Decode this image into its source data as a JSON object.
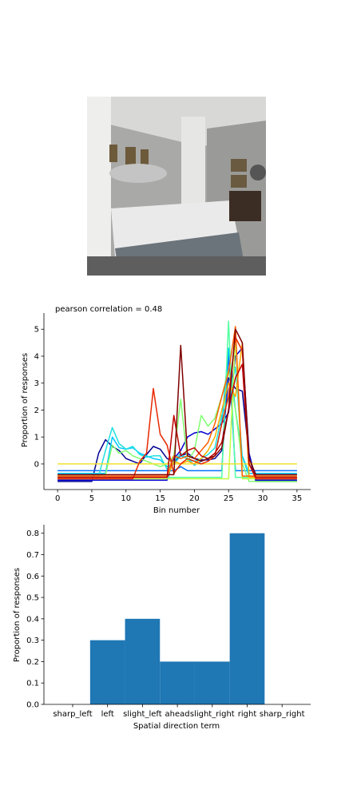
{
  "photo": {
    "description": "bedroom-photo"
  },
  "chart_data": [
    {
      "type": "line",
      "title": "pearson correlation = 0.48",
      "xlabel": "Bin number",
      "ylabel": "Proportion of responses",
      "xlim": [
        -2,
        37
      ],
      "ylim": [
        -0.95,
        5.6
      ],
      "xticks": [
        0,
        5,
        10,
        15,
        20,
        25,
        30,
        35
      ],
      "yticks": [
        0,
        1,
        2,
        3,
        4,
        5
      ],
      "x": [
        0,
        1,
        2,
        3,
        4,
        5,
        6,
        7,
        8,
        9,
        10,
        11,
        12,
        13,
        14,
        15,
        16,
        17,
        18,
        19,
        20,
        21,
        22,
        23,
        24,
        25,
        26,
        27,
        28,
        29,
        30,
        31,
        32,
        33,
        34,
        35
      ],
      "series": [
        {
          "color": "#00008f",
          "values": [
            -0.65,
            -0.65,
            -0.65,
            -0.65,
            -0.65,
            -0.65,
            0.4,
            0.9,
            0.65,
            0.5,
            0.2,
            0.1,
            0.0,
            0.35,
            0.65,
            0.55,
            0.2,
            0.1,
            0.3,
            0.4,
            0.2,
            0.15,
            0.15,
            0.2,
            0.5,
            3.2,
            2.8,
            2.7,
            0.3,
            -0.65,
            -0.65,
            -0.65,
            -0.65,
            -0.65,
            -0.65,
            -0.65
          ]
        },
        {
          "color": "#0000d0",
          "values": [
            -0.6,
            -0.6,
            -0.6,
            -0.6,
            -0.6,
            -0.6,
            -0.6,
            -0.6,
            -0.6,
            -0.6,
            -0.6,
            -0.6,
            -0.6,
            -0.6,
            -0.6,
            -0.6,
            -0.6,
            0.2,
            0.5,
            1.0,
            1.15,
            1.2,
            1.1,
            1.3,
            1.5,
            1.9,
            4.0,
            4.3,
            0.4,
            -0.6,
            -0.6,
            -0.6,
            -0.6,
            -0.6,
            -0.6,
            -0.6
          ]
        },
        {
          "color": "#0070ff",
          "values": [
            -0.25,
            -0.25,
            -0.25,
            -0.25,
            -0.25,
            -0.25,
            -0.25,
            -0.25,
            -0.25,
            -0.25,
            -0.25,
            -0.25,
            -0.25,
            -0.25,
            -0.25,
            -0.25,
            -0.25,
            -0.25,
            -0.1,
            -0.25,
            -0.25,
            -0.25,
            -0.25,
            -0.25,
            -0.25,
            4.1,
            -0.25,
            -0.25,
            -0.25,
            -0.25,
            -0.25,
            -0.25,
            -0.25,
            -0.25,
            -0.25,
            -0.25
          ]
        },
        {
          "color": "#00c8ff",
          "values": [
            -0.35,
            -0.35,
            -0.35,
            -0.35,
            -0.35,
            -0.35,
            -0.35,
            -0.35,
            1.0,
            0.6,
            0.55,
            0.6,
            0.4,
            0.3,
            0.2,
            0.15,
            -0.1,
            0.0,
            0.3,
            0.2,
            -0.05,
            0.1,
            0.2,
            0.3,
            1.5,
            4.3,
            2.0,
            0.3,
            -0.35,
            -0.35,
            -0.35,
            -0.35,
            -0.35,
            -0.35,
            -0.35,
            -0.35
          ]
        },
        {
          "color": "#20e0e0",
          "values": [
            -0.45,
            -0.45,
            -0.45,
            -0.45,
            -0.45,
            -0.45,
            -0.45,
            0.5,
            1.35,
            0.75,
            0.55,
            0.65,
            0.35,
            0.25,
            0.3,
            0.3,
            -0.2,
            0.1,
            0.4,
            0.15,
            0.1,
            0.2,
            0.35,
            0.6,
            1.8,
            2.4,
            3.6,
            0.25,
            -0.45,
            -0.45,
            -0.45,
            -0.45,
            -0.45,
            -0.45,
            -0.45,
            -0.45
          ]
        },
        {
          "color": "#50ffa0",
          "values": [
            -0.5,
            -0.5,
            -0.5,
            -0.5,
            -0.5,
            -0.5,
            -0.5,
            -0.5,
            -0.5,
            -0.5,
            -0.5,
            -0.5,
            -0.5,
            -0.5,
            -0.5,
            -0.5,
            -0.5,
            -0.5,
            -0.5,
            -0.5,
            -0.5,
            -0.5,
            -0.5,
            -0.5,
            -0.5,
            5.3,
            -0.5,
            -0.5,
            -0.5,
            -0.5,
            -0.5,
            -0.5,
            -0.5,
            -0.5,
            -0.5,
            -0.5
          ]
        },
        {
          "color": "#80ff70",
          "values": [
            -0.4,
            -0.4,
            -0.4,
            -0.4,
            -0.4,
            -0.4,
            -0.4,
            -0.4,
            0.7,
            0.4,
            0.5,
            0.3,
            0.2,
            0.1,
            0.0,
            -0.1,
            0.0,
            0.3,
            2.4,
            0.1,
            0.5,
            1.8,
            1.4,
            1.7,
            2.5,
            3.5,
            2.0,
            0.0,
            -0.65,
            -0.65,
            -0.65,
            -0.65,
            -0.65,
            -0.65,
            -0.65,
            -0.65
          ]
        },
        {
          "color": "#c0ff40",
          "values": [
            -0.55,
            -0.55,
            -0.55,
            -0.55,
            -0.55,
            -0.55,
            -0.55,
            -0.55,
            -0.55,
            -0.55,
            -0.55,
            -0.55,
            -0.55,
            -0.55,
            -0.55,
            -0.55,
            -0.55,
            -0.55,
            -0.55,
            -0.55,
            -0.55,
            -0.55,
            -0.55,
            -0.55,
            -0.55,
            -0.55,
            4.7,
            -0.55,
            -0.55,
            -0.55,
            -0.55,
            -0.55,
            -0.55,
            -0.55,
            -0.55,
            -0.55
          ]
        },
        {
          "color": "#f0e030",
          "values": [
            0.0,
            0.0,
            0.0,
            0.0,
            0.0,
            0.0,
            0.0,
            0.0,
            0.0,
            0.0,
            0.0,
            0.0,
            0.0,
            0.0,
            0.0,
            0.0,
            0.0,
            0.0,
            0.0,
            0.0,
            0.0,
            0.0,
            0.0,
            0.0,
            0.0,
            0.0,
            0.0,
            0.0,
            0.0,
            0.0,
            0.0,
            0.0,
            0.0,
            0.0,
            0.0,
            0.0
          ]
        },
        {
          "color": "#ffb000",
          "values": [
            -0.5,
            -0.5,
            -0.5,
            -0.5,
            -0.5,
            -0.5,
            -0.5,
            -0.5,
            -0.5,
            -0.5,
            -0.5,
            -0.5,
            -0.5,
            -0.5,
            -0.5,
            -0.5,
            -0.5,
            0.1,
            0.0,
            0.1,
            0.0,
            0.2,
            0.5,
            1.0,
            2.0,
            3.0,
            2.5,
            4.5,
            -0.5,
            -0.5,
            -0.5,
            -0.5,
            -0.5,
            -0.5,
            -0.5,
            -0.5
          ]
        },
        {
          "color": "#ff6000",
          "values": [
            -0.45,
            -0.45,
            -0.45,
            -0.45,
            -0.45,
            -0.45,
            -0.45,
            -0.45,
            -0.45,
            -0.45,
            -0.45,
            -0.45,
            -0.45,
            -0.45,
            -0.45,
            -0.45,
            -0.45,
            0.3,
            0.2,
            0.3,
            0.2,
            0.5,
            0.8,
            1.5,
            2.5,
            3.4,
            5.1,
            -0.45,
            -0.45,
            -0.45,
            -0.45,
            -0.45,
            -0.45,
            -0.45,
            -0.45,
            -0.45
          ]
        },
        {
          "color": "#e82800",
          "values": [
            -0.55,
            -0.55,
            -0.55,
            -0.55,
            -0.55,
            -0.55,
            -0.55,
            -0.55,
            -0.55,
            -0.55,
            -0.55,
            -0.55,
            0.1,
            0.4,
            2.8,
            1.1,
            0.7,
            -0.35,
            0.0,
            0.2,
            0.1,
            0.0,
            0.1,
            0.3,
            1.5,
            2.5,
            4.7,
            4.2,
            0.0,
            -0.55,
            -0.55,
            -0.55,
            -0.55,
            -0.55,
            -0.55,
            -0.55
          ]
        },
        {
          "color": "#c00000",
          "values": [
            -0.5,
            -0.5,
            -0.5,
            -0.5,
            -0.5,
            -0.5,
            -0.5,
            -0.5,
            -0.5,
            -0.5,
            -0.5,
            -0.5,
            -0.5,
            -0.5,
            -0.5,
            -0.5,
            -0.5,
            1.8,
            0.3,
            0.5,
            0.6,
            0.3,
            0.2,
            0.4,
            0.8,
            2.0,
            3.2,
            3.7,
            0.0,
            -0.5,
            -0.5,
            -0.5,
            -0.5,
            -0.5,
            -0.5,
            -0.5
          ]
        },
        {
          "color": "#800000",
          "values": [
            -0.4,
            -0.4,
            -0.4,
            -0.4,
            -0.4,
            -0.4,
            -0.4,
            -0.4,
            -0.4,
            -0.4,
            -0.4,
            -0.4,
            -0.4,
            -0.4,
            -0.4,
            -0.4,
            -0.4,
            -0.4,
            4.4,
            0.3,
            0.2,
            0.1,
            0.2,
            0.3,
            0.6,
            2.0,
            5.0,
            4.5,
            0.2,
            -0.4,
            -0.4,
            -0.4,
            -0.4,
            -0.4,
            -0.4,
            -0.4
          ]
        }
      ]
    },
    {
      "type": "bar",
      "xlabel": "Spatial direction term",
      "ylabel": "Proportion of responses",
      "categories": [
        "sharp_left",
        "left",
        "slight_left",
        "ahead",
        "slight_right",
        "right",
        "sharp_right"
      ],
      "values": [
        0.0,
        0.3,
        0.4,
        0.2,
        0.2,
        0.8,
        0.0
      ],
      "ylim": [
        0,
        0.84
      ],
      "yticks": [
        0.0,
        0.1,
        0.2,
        0.3,
        0.4,
        0.5,
        0.6,
        0.7,
        0.8
      ],
      "color": "#1f77b4"
    }
  ]
}
